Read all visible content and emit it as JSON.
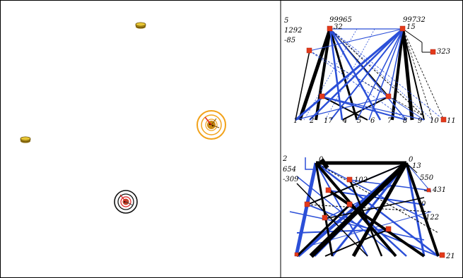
{
  "arena": {
    "agents": [
      {
        "id": "coin-top",
        "kind": "coin"
      },
      {
        "id": "coin-left",
        "kind": "coin"
      },
      {
        "id": "creature-orange",
        "kind": "creature",
        "ring_color": "#f2a21a"
      },
      {
        "id": "creature-dark",
        "kind": "creature",
        "ring_color": "#222222"
      }
    ]
  },
  "graph_top": {
    "stats": [
      "5",
      "1292",
      "-85"
    ],
    "header_values": [
      "99965",
      "99732"
    ],
    "node_labels": [
      "32",
      "15",
      "323",
      "1",
      "2",
      "17",
      "4",
      "5",
      "6",
      "7",
      "8",
      "9",
      "10",
      "11"
    ]
  },
  "graph_bottom": {
    "stats": [
      "2",
      "654",
      "-309"
    ],
    "header_values": [
      "0",
      "0"
    ],
    "node_labels": [
      "13",
      "102",
      "550",
      "431",
      "0",
      "122",
      "21"
    ]
  },
  "colors": {
    "edge_blue": "#2b4fd8",
    "edge_black": "#000000",
    "node": "#e33a1a",
    "border": "#000000"
  }
}
